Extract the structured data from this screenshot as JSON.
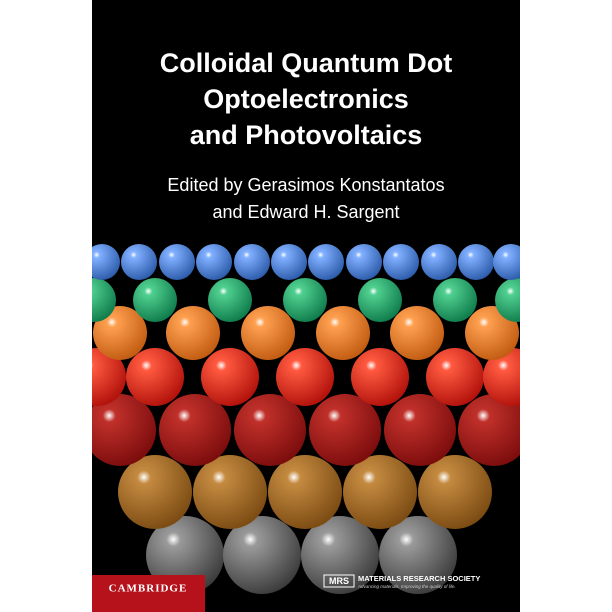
{
  "cover": {
    "title_lines": [
      "Colloidal Quantum Dot",
      "Optoelectronics",
      "and Photovoltaics"
    ],
    "editors": [
      "Edited by Gerasimos Konstantatos",
      "and Edward H. Sargent"
    ],
    "publisher": "CAMBRIDGE",
    "society": {
      "logo": "MRS",
      "name": "MATERIALS RESEARCH SOCIETY",
      "tagline": "Advancing materials. Improving the quality of life."
    }
  }
}
